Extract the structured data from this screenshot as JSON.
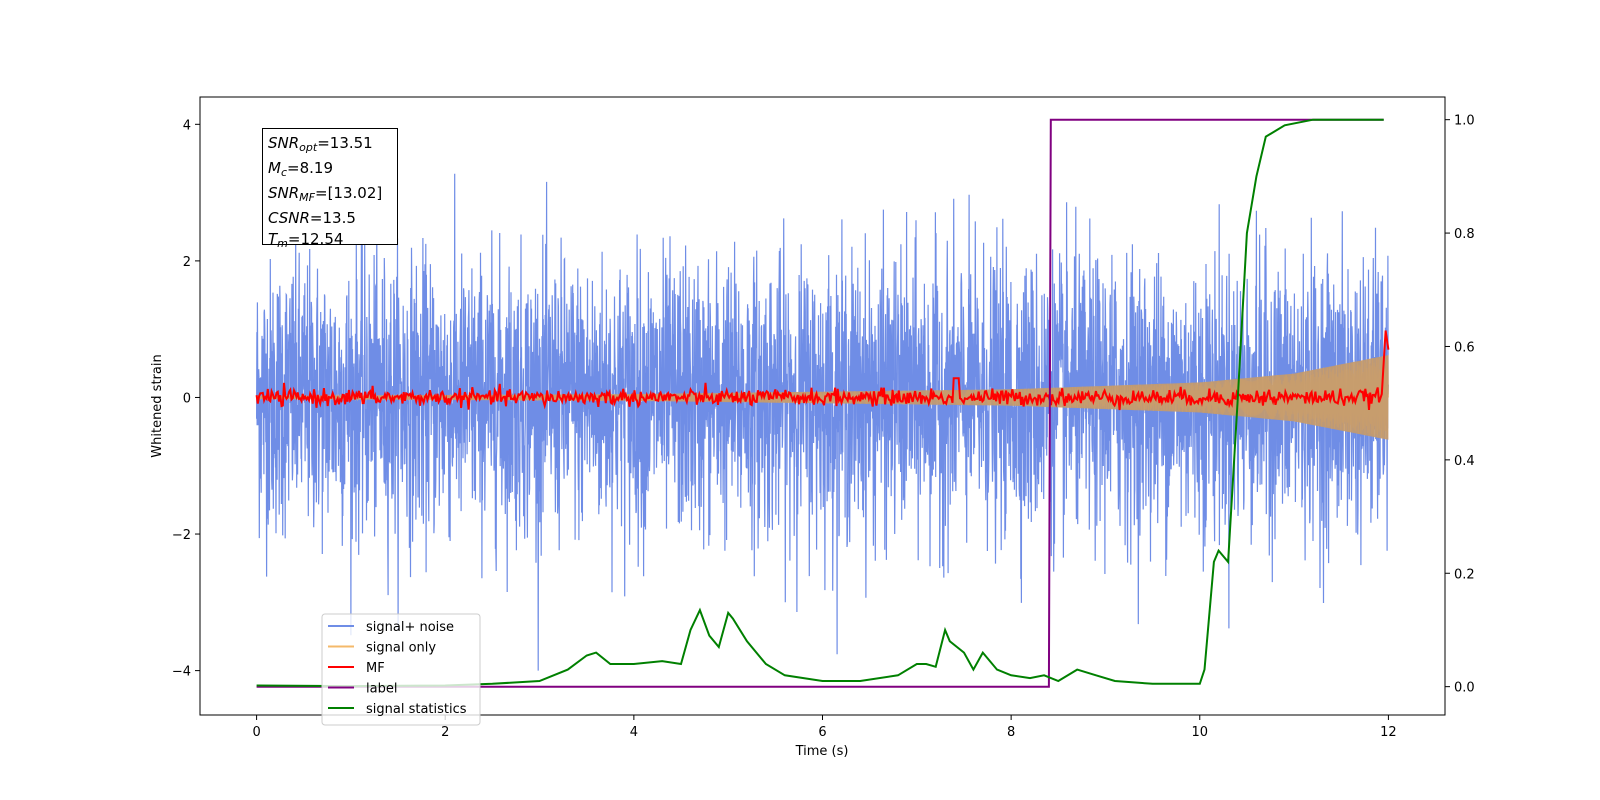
{
  "chart_data": {
    "type": "line",
    "title": "",
    "xlabel": "Time (s)",
    "ylabel": "Whitened strain",
    "ylabel_right": "",
    "xlim": [
      -0.6,
      12.6
    ],
    "ylim": [
      -4.65,
      4.4
    ],
    "ylim_right": [
      -0.05,
      1.04
    ],
    "xticks": [
      0,
      2,
      4,
      6,
      8,
      10,
      12
    ],
    "yticks": [
      -4,
      -2,
      0,
      2,
      4
    ],
    "yticks_right": [
      0.0,
      0.2,
      0.4,
      0.6,
      0.8,
      1.0
    ],
    "grid": false,
    "legend_position": "lower-left",
    "info_box": {
      "snr_opt": {
        "name": "SNR",
        "sub": "opt",
        "value": "=13.51"
      },
      "mc": {
        "name": "M",
        "sub": "c",
        "value": "=8.19"
      },
      "snr_mf": {
        "name": "SNR",
        "sub": "MF",
        "value": "=[13.02]"
      },
      "csnr": {
        "name": "CSNR",
        "value": "=13.5"
      },
      "tm": {
        "name": "T",
        "sub": "m",
        "value": "=12.54"
      }
    },
    "series": [
      {
        "name": "signal+ noise",
        "color": "#6f8de6",
        "axis": "left",
        "description_values": {
          "x_start": 0,
          "x_end": 12,
          "noise_std": 1.0,
          "peak_abs": 4.0
        }
      },
      {
        "name": "signal only",
        "color": "#f4b96a",
        "axis": "left",
        "envelope": {
          "x": [
            0,
            4,
            8,
            10,
            11,
            12
          ],
          "amplitude": [
            0.02,
            0.05,
            0.12,
            0.22,
            0.35,
            0.62
          ]
        }
      },
      {
        "name": "MF",
        "color": "#ff0000",
        "axis": "left",
        "baseline": 0.0,
        "end_peak": {
          "x": 11.97,
          "y": 0.98
        },
        "spike": {
          "x": 7.42,
          "y": 0.28
        }
      },
      {
        "name": "label",
        "color": "#800080",
        "axis": "right",
        "x": [
          0,
          8.4,
          8.42,
          11.95
        ],
        "y": [
          0.0,
          0.0,
          1.0,
          1.0
        ]
      },
      {
        "name": "signal statistics",
        "color": "#008000",
        "axis": "right",
        "x": [
          0,
          1,
          2,
          2.5,
          3,
          3.3,
          3.5,
          3.6,
          3.75,
          4,
          4.3,
          4.5,
          4.6,
          4.7,
          4.8,
          4.9,
          5.0,
          5.05,
          5.2,
          5.4,
          5.6,
          5.8,
          6.0,
          6.4,
          6.8,
          7.0,
          7.1,
          7.2,
          7.3,
          7.35,
          7.5,
          7.6,
          7.7,
          7.85,
          8.0,
          8.2,
          8.35,
          8.5,
          8.7,
          8.9,
          9.1,
          9.5,
          10.0,
          10.05,
          10.15,
          10.2,
          10.3,
          10.4,
          10.5,
          10.6,
          10.7,
          10.9,
          11.2,
          11.6,
          11.95
        ],
        "y": [
          0.002,
          0.001,
          0.002,
          0.005,
          0.01,
          0.03,
          0.055,
          0.06,
          0.04,
          0.04,
          0.045,
          0.04,
          0.1,
          0.135,
          0.09,
          0.07,
          0.13,
          0.12,
          0.08,
          0.04,
          0.02,
          0.015,
          0.01,
          0.01,
          0.02,
          0.04,
          0.04,
          0.035,
          0.1,
          0.08,
          0.06,
          0.03,
          0.06,
          0.03,
          0.02,
          0.015,
          0.02,
          0.01,
          0.03,
          0.02,
          0.01,
          0.005,
          0.005,
          0.03,
          0.22,
          0.24,
          0.22,
          0.5,
          0.8,
          0.9,
          0.97,
          0.99,
          1.0,
          1.0,
          1.0
        ]
      }
    ]
  }
}
